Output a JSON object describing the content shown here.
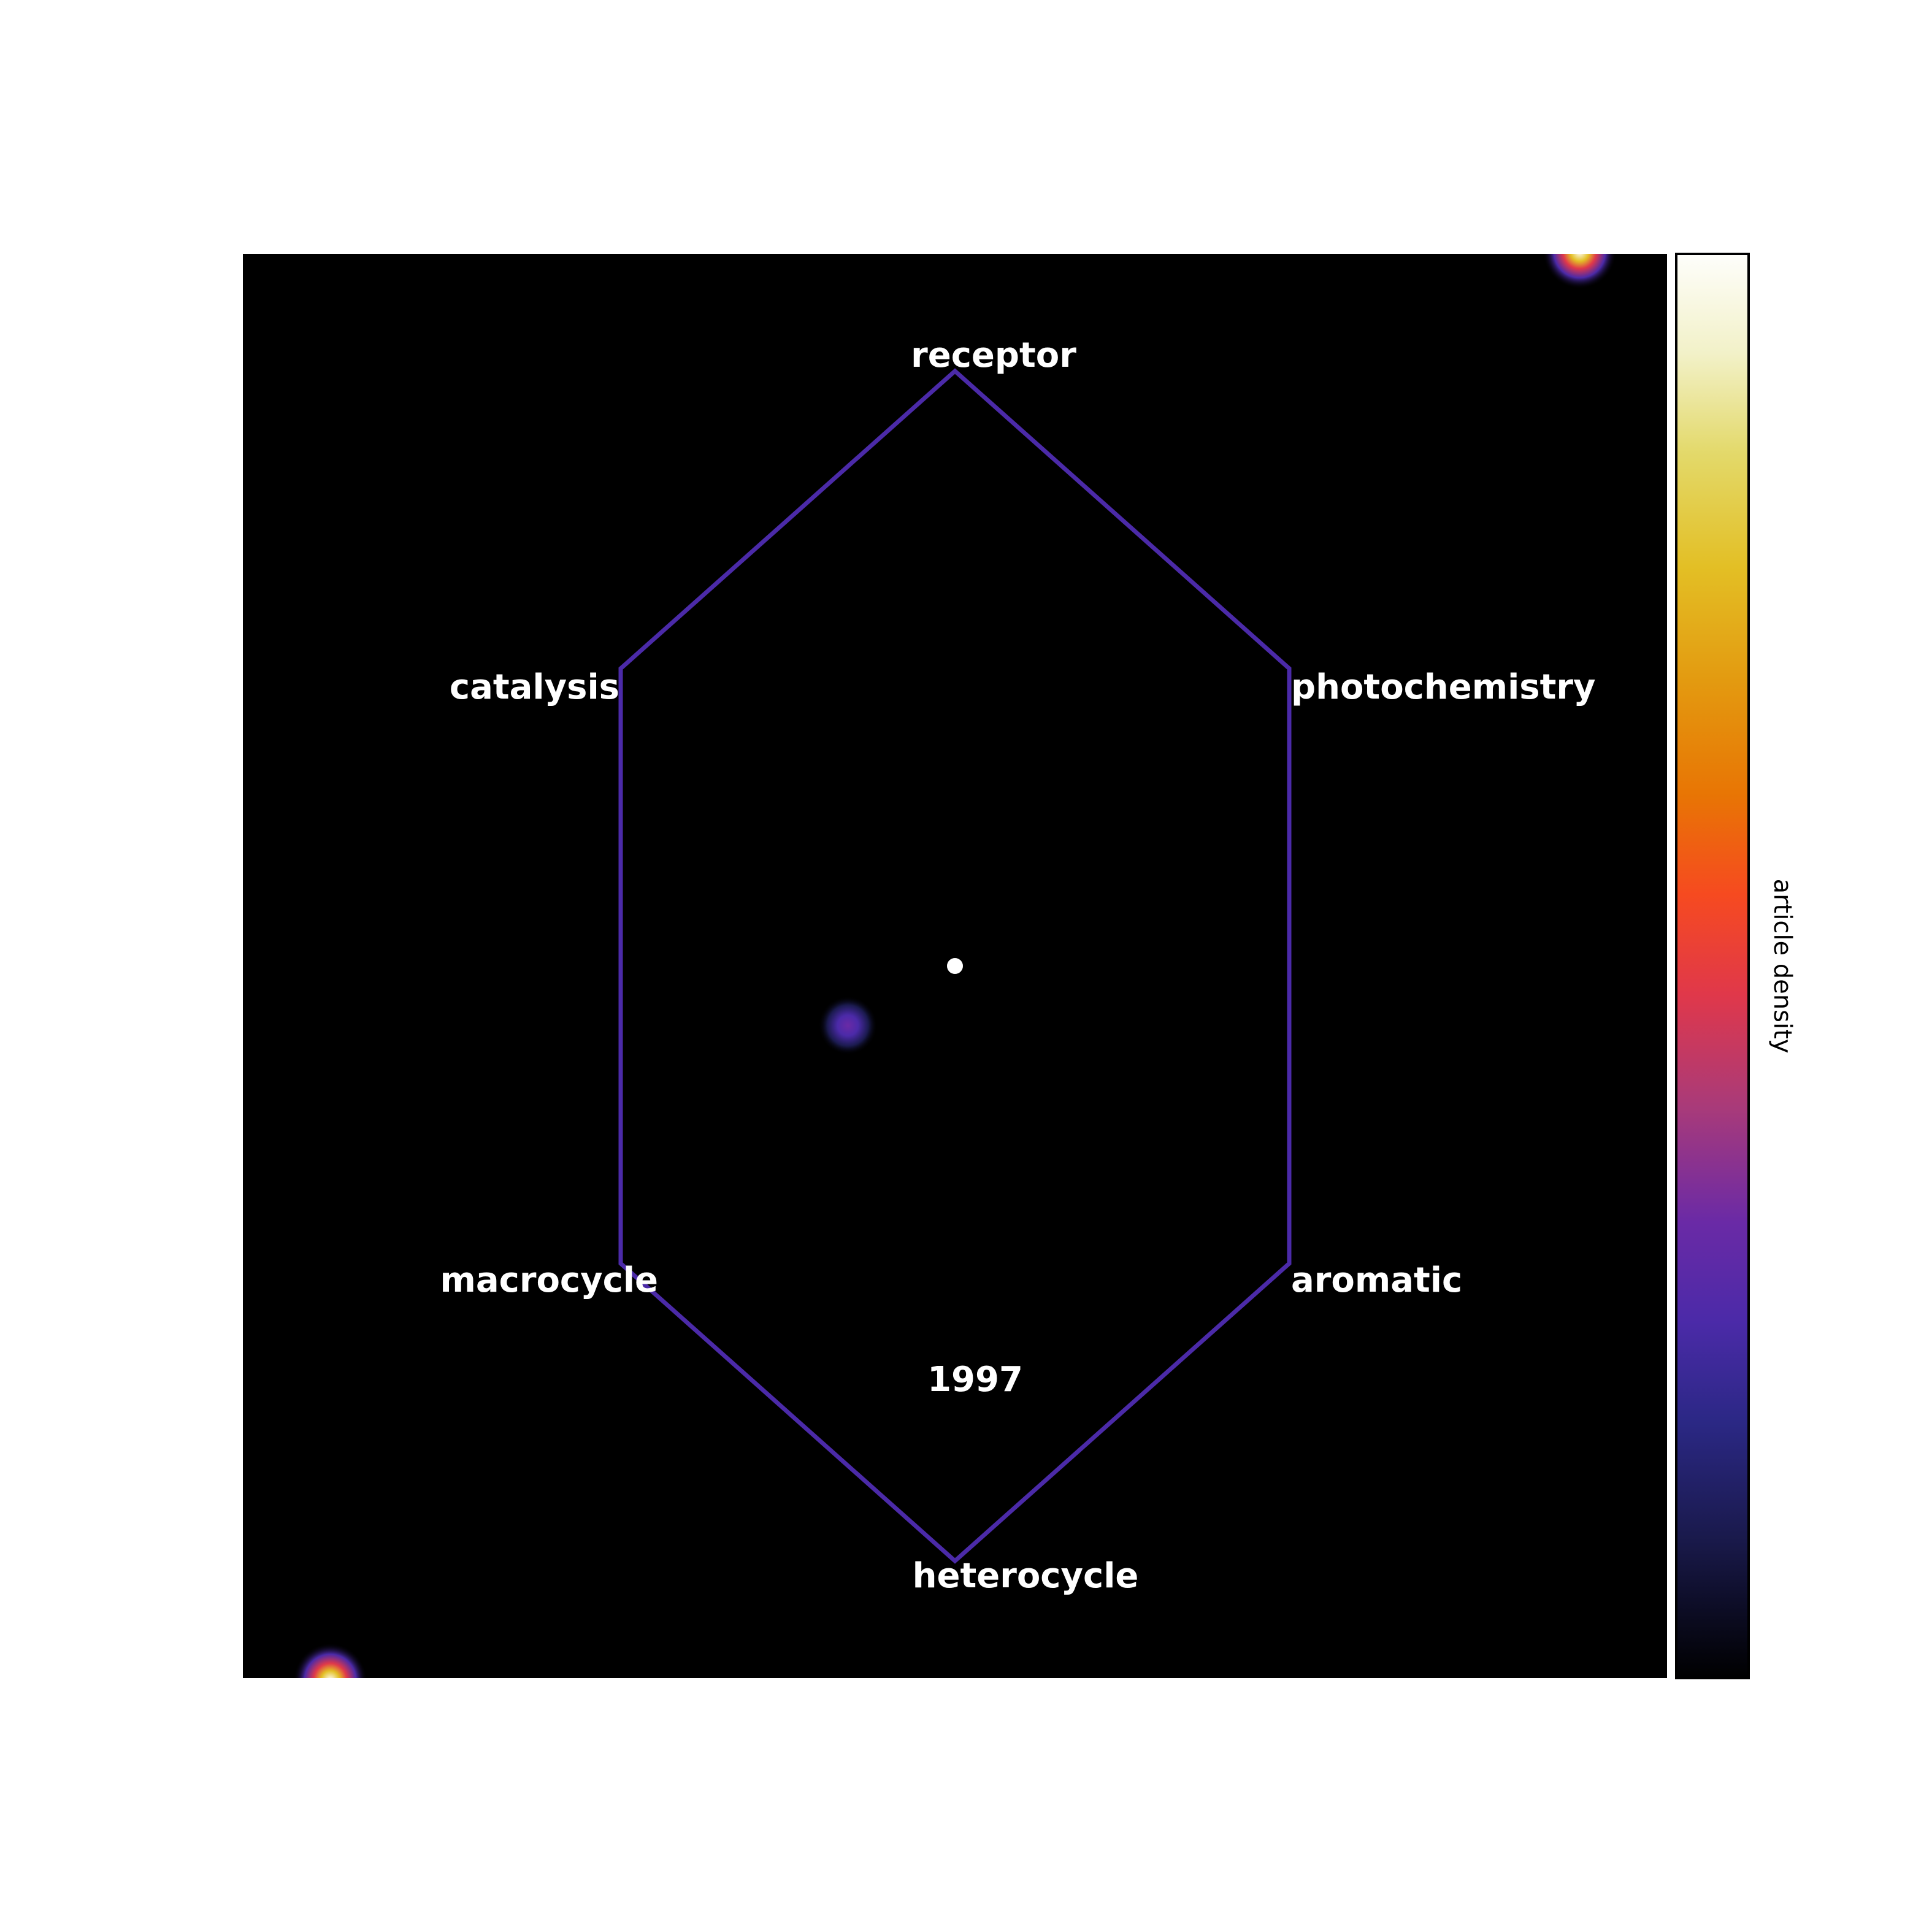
{
  "chart_data": {
    "type": "heatmap",
    "title": "",
    "year": "1997",
    "axes": [
      {
        "name": "receptor",
        "direction": "top"
      },
      {
        "name": "photochemistry",
        "direction": "upper-right"
      },
      {
        "name": "aromatic",
        "direction": "lower-right"
      },
      {
        "name": "heterocycle",
        "direction": "bottom"
      },
      {
        "name": "macrocycle",
        "direction": "lower-left"
      },
      {
        "name": "catalysis",
        "direction": "upper-left"
      }
    ],
    "density_spots": [
      {
        "x": -0.36,
        "y": -0.2,
        "intensity": 0.3
      },
      {
        "x": 2.1,
        "y": 2.4,
        "intensity": 0.9
      },
      {
        "x": -2.1,
        "y": -2.4,
        "intensity": 0.9
      }
    ],
    "centroid": {
      "x": 0.0,
      "y": 0.0
    },
    "colorbar": {
      "label": "article density",
      "colormap": "CMRmap",
      "tick_labels": "none"
    },
    "colors": {
      "background": "#000000",
      "polygon": "#4b2aa8",
      "text": "#ffffff",
      "centroid": "#ffffff"
    }
  }
}
